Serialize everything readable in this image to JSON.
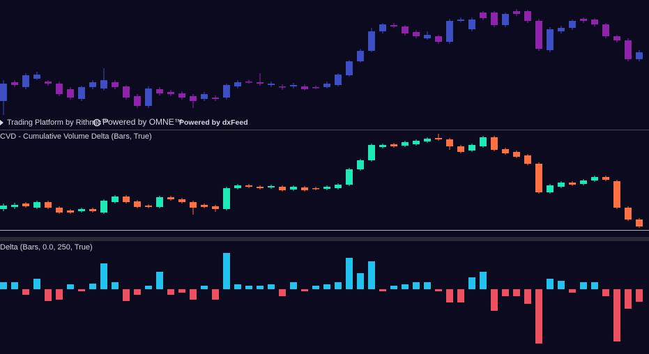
{
  "chart_data": [
    {
      "type": "candlestick",
      "annotations": [
        "Trading Platform by Rithmic™",
        "Powered by OMNE™",
        "Powered by dxFeed"
      ],
      "up_color": "#3d4fc2",
      "down_color": "#8e24aa",
      "ylim": [
        0,
        185
      ],
      "open": [
        40,
        67,
        60,
        72,
        68,
        65,
        57,
        43,
        60,
        58,
        67,
        61,
        47,
        33,
        57,
        53,
        51,
        47,
        43,
        45,
        45,
        61,
        68,
        67,
        63,
        61,
        61,
        61,
        60,
        60,
        63,
        77,
        97,
        112,
        140,
        149,
        147,
        139,
        130,
        133,
        125,
        155,
        143,
        167,
        167,
        149,
        169,
        169,
        155,
        113,
        140,
        145,
        158,
        157,
        150,
        133,
        127,
        100
      ],
      "high": [
        70,
        70,
        80,
        82,
        70,
        68,
        60,
        62,
        70,
        87,
        70,
        63,
        50,
        61,
        60,
        56,
        54,
        50,
        53,
        48,
        65,
        70,
        71,
        80,
        68,
        64,
        66,
        64,
        62,
        68,
        80,
        99,
        115,
        145,
        152,
        152,
        149,
        142,
        140,
        135,
        158,
        160,
        160,
        169,
        169,
        167,
        172,
        171,
        158,
        146,
        148,
        157,
        160,
        159,
        152,
        135,
        130,
        113
      ],
      "low": [
        20,
        60,
        57,
        70,
        62,
        47,
        42,
        40,
        57,
        55,
        57,
        42,
        30,
        30,
        48,
        47,
        42,
        30,
        40,
        40,
        42,
        58,
        65,
        62,
        60,
        56,
        58,
        55,
        57,
        58,
        61,
        75,
        95,
        110,
        137,
        145,
        134,
        130,
        128,
        122,
        122,
        153,
        140,
        156,
        146,
        146,
        162,
        152,
        112,
        110,
        137,
        142,
        152,
        147,
        130,
        124,
        97,
        97
      ],
      "close": [
        65,
        63,
        77,
        78,
        65,
        50,
        45,
        60,
        67,
        70,
        60,
        45,
        33,
        58,
        51,
        50,
        45,
        40,
        50,
        43,
        63,
        67,
        67,
        65,
        65,
        60,
        63,
        57,
        59,
        65,
        78,
        97,
        112,
        140,
        150,
        147,
        137,
        133,
        135,
        125,
        155,
        157,
        157,
        159,
        149,
        165,
        165,
        155,
        115,
        143,
        145,
        155,
        155,
        150,
        133,
        127,
        100,
        110
      ]
    },
    {
      "type": "candlestick",
      "title": "CVD - Cumulative Volume Delta (Bars, True)",
      "up_color": "#1de9b6",
      "down_color": "#ff7043",
      "ylim": [
        0,
        153
      ],
      "open": [
        40,
        43,
        48,
        42,
        50,
        42,
        38,
        37,
        40,
        35,
        50,
        58,
        51,
        45,
        43,
        57,
        54,
        50,
        46,
        44,
        40,
        70,
        74,
        72,
        71,
        72,
        68,
        71,
        70,
        69,
        70,
        75,
        97,
        110,
        129,
        133,
        131,
        133,
        137,
        142,
        140,
        130,
        124,
        130,
        143,
        126,
        122,
        117,
        105,
        64,
        72,
        78,
        76,
        81,
        86,
        80,
        42,
        25
      ],
      "high": [
        48,
        49,
        50,
        52,
        52,
        44,
        40,
        42,
        42,
        54,
        60,
        60,
        53,
        47,
        59,
        59,
        56,
        52,
        48,
        46,
        72,
        76,
        76,
        74,
        75,
        74,
        74,
        73,
        72,
        74,
        77,
        99,
        112,
        134,
        134,
        135,
        138,
        140,
        143,
        148,
        142,
        132,
        134,
        145,
        145,
        128,
        124,
        119,
        107,
        76,
        80,
        80,
        83,
        88,
        88,
        82,
        44,
        27
      ],
      "low": [
        37,
        40,
        42,
        40,
        40,
        33,
        33,
        35,
        35,
        33,
        48,
        48,
        41,
        41,
        41,
        52,
        48,
        32,
        41,
        36,
        38,
        68,
        70,
        68,
        69,
        65,
        66,
        65,
        67,
        67,
        68,
        73,
        95,
        108,
        127,
        128,
        129,
        131,
        135,
        138,
        125,
        120,
        122,
        128,
        123,
        118,
        113,
        103,
        62,
        62,
        70,
        73,
        74,
        79,
        80,
        40,
        23,
        13
      ],
      "close": [
        45,
        46,
        44,
        50,
        42,
        35,
        35,
        40,
        37,
        52,
        58,
        50,
        43,
        43,
        57,
        54,
        50,
        42,
        43,
        40,
        70,
        74,
        72,
        70,
        73,
        67,
        72,
        67,
        69,
        72,
        75,
        97,
        110,
        132,
        132,
        130,
        136,
        138,
        141,
        140,
        130,
        122,
        132,
        143,
        125,
        120,
        115,
        105,
        64,
        74,
        78,
        75,
        81,
        86,
        82,
        42,
        25,
        15
      ]
    },
    {
      "type": "bar",
      "title": "Delta (Bars, 0.0, 250, True)",
      "up_color": "#22c3ee",
      "down_color": "#ef5160",
      "ylim": [
        -93,
        70
      ],
      "values": [
        10,
        10,
        -8,
        15,
        -17,
        -15,
        7,
        -3,
        8,
        37,
        10,
        -17,
        -8,
        5,
        25,
        -8,
        -5,
        -15,
        5,
        -15,
        52,
        7,
        5,
        5,
        7,
        -10,
        10,
        -3,
        5,
        7,
        10,
        45,
        23,
        40,
        -3,
        5,
        7,
        10,
        10,
        -3,
        -19,
        -19,
        17,
        25,
        -31,
        -10,
        -10,
        -21,
        -78,
        15,
        12,
        -5,
        10,
        10,
        -10,
        -75,
        -28,
        -18
      ]
    }
  ]
}
